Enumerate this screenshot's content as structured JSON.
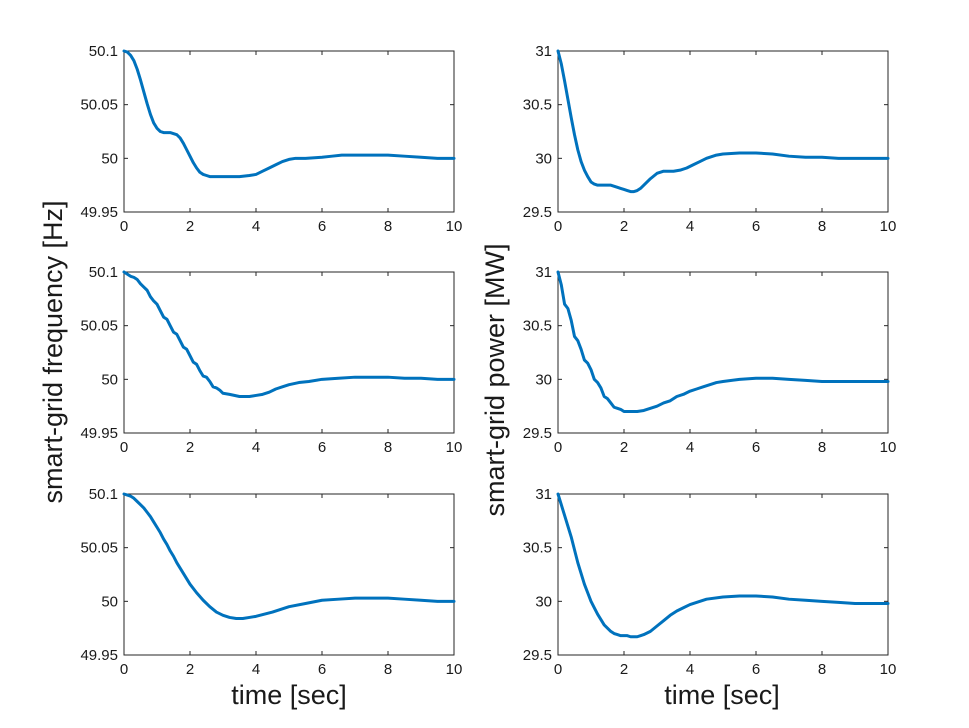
{
  "figure": {
    "left_ylabel": "smart-grid frequency [Hz]",
    "right_ylabel": "smart-grid power [MW]",
    "left_xlabel": "time [sec]",
    "right_xlabel": "time [sec]"
  },
  "colors": {
    "line": "#0072BD",
    "axes": "#262626"
  },
  "chart_data": [
    {
      "type": "line",
      "panel": "top-left",
      "xlim": [
        0,
        10
      ],
      "ylim": [
        49.95,
        50.1
      ],
      "xticks": [
        "0",
        "2",
        "4",
        "6",
        "8",
        "10"
      ],
      "yticks": [
        "50.1",
        "50.05",
        "50",
        "49.95"
      ],
      "series": [
        {
          "x": [
            0,
            0.1,
            0.2,
            0.3,
            0.4,
            0.5,
            0.6,
            0.7,
            0.8,
            0.9,
            1.0,
            1.1,
            1.2,
            1.4,
            1.6,
            1.7,
            1.8,
            1.9,
            2.0,
            2.1,
            2.2,
            2.3,
            2.4,
            2.5,
            2.6,
            2.7,
            2.8,
            3.0,
            3.2,
            3.5,
            3.8,
            4.0,
            4.2,
            4.4,
            4.6,
            4.8,
            5.0,
            5.2,
            5.5,
            6.0,
            6.3,
            6.6,
            7.0,
            7.5,
            8.0,
            8.5,
            9.0,
            9.5,
            10
          ],
          "y": [
            50.1,
            50.099,
            50.096,
            50.091,
            50.083,
            50.073,
            50.062,
            50.051,
            50.041,
            50.033,
            50.028,
            50.025,
            50.024,
            50.024,
            50.022,
            50.019,
            50.014,
            50.008,
            50.002,
            49.996,
            49.991,
            49.987,
            49.985,
            49.984,
            49.983,
            49.983,
            49.983,
            49.983,
            49.983,
            49.983,
            49.984,
            49.985,
            49.988,
            49.991,
            49.994,
            49.997,
            49.999,
            50.0,
            50.0,
            50.001,
            50.002,
            50.003,
            50.003,
            50.003,
            50.003,
            50.002,
            50.001,
            50.0,
            50.0
          ]
        }
      ]
    },
    {
      "type": "line",
      "panel": "top-right",
      "xlim": [
        0,
        10
      ],
      "ylim": [
        29.5,
        31
      ],
      "xticks": [
        "0",
        "2",
        "4",
        "6",
        "8",
        "10"
      ],
      "yticks": [
        "31",
        "30.5",
        "30",
        "29.5"
      ],
      "series": [
        {
          "x": [
            0,
            0.1,
            0.2,
            0.3,
            0.4,
            0.5,
            0.6,
            0.7,
            0.8,
            0.9,
            1.0,
            1.1,
            1.2,
            1.4,
            1.6,
            1.8,
            1.9,
            2.0,
            2.1,
            2.2,
            2.3,
            2.4,
            2.5,
            2.6,
            2.8,
            3.0,
            3.2,
            3.5,
            3.7,
            3.9,
            4.1,
            4.3,
            4.5,
            4.8,
            5.0,
            5.5,
            6.0,
            6.5,
            7.0,
            7.5,
            8.0,
            8.5,
            9.0,
            9.5,
            10
          ],
          "y": [
            31.0,
            30.88,
            30.72,
            30.55,
            30.38,
            30.22,
            30.08,
            29.97,
            29.89,
            29.83,
            29.78,
            29.76,
            29.75,
            29.75,
            29.75,
            29.73,
            29.72,
            29.71,
            29.7,
            29.69,
            29.69,
            29.7,
            29.72,
            29.75,
            29.81,
            29.86,
            29.88,
            29.88,
            29.89,
            29.91,
            29.94,
            29.97,
            30.0,
            30.03,
            30.04,
            30.05,
            30.05,
            30.04,
            30.02,
            30.01,
            30.01,
            30.0,
            30.0,
            30.0,
            30.0
          ]
        }
      ]
    },
    {
      "type": "line",
      "panel": "middle-left",
      "xlim": [
        0,
        10
      ],
      "ylim": [
        49.95,
        50.1
      ],
      "xticks": [
        "0",
        "2",
        "4",
        "6",
        "8",
        "10"
      ],
      "yticks": [
        "50.1",
        "50.05",
        "50",
        "49.95"
      ],
      "series": [
        {
          "x": [
            0,
            0.1,
            0.2,
            0.3,
            0.4,
            0.5,
            0.6,
            0.7,
            0.8,
            0.9,
            1.0,
            1.1,
            1.2,
            1.3,
            1.4,
            1.5,
            1.6,
            1.7,
            1.8,
            1.9,
            2.0,
            2.1,
            2.2,
            2.3,
            2.4,
            2.5,
            2.6,
            2.7,
            2.8,
            2.9,
            3.0,
            3.2,
            3.5,
            3.8,
            4.0,
            4.2,
            4.4,
            4.6,
            4.8,
            5.0,
            5.3,
            5.6,
            6.0,
            6.5,
            7.0,
            7.5,
            8.0,
            8.5,
            9.0,
            9.5,
            10
          ],
          "y": [
            50.1,
            50.098,
            50.096,
            50.095,
            50.093,
            50.089,
            50.086,
            50.083,
            50.077,
            50.073,
            50.07,
            50.064,
            50.058,
            50.056,
            50.05,
            50.044,
            50.042,
            50.036,
            50.03,
            50.028,
            50.022,
            50.016,
            50.014,
            50.008,
            50.003,
            50.002,
            49.998,
            49.993,
            49.992,
            49.99,
            49.987,
            49.986,
            49.984,
            49.984,
            49.985,
            49.986,
            49.988,
            49.991,
            49.993,
            49.995,
            49.997,
            49.998,
            50.0,
            50.001,
            50.002,
            50.002,
            50.002,
            50.001,
            50.001,
            50.0,
            50.0
          ]
        }
      ]
    },
    {
      "type": "line",
      "panel": "middle-right",
      "xlim": [
        0,
        10
      ],
      "ylim": [
        29.5,
        31
      ],
      "xticks": [
        "0",
        "2",
        "4",
        "6",
        "8",
        "10"
      ],
      "yticks": [
        "31",
        "30.5",
        "30",
        "29.5"
      ],
      "series": [
        {
          "x": [
            0,
            0.1,
            0.2,
            0.3,
            0.4,
            0.5,
            0.6,
            0.7,
            0.8,
            0.9,
            1.0,
            1.1,
            1.2,
            1.3,
            1.4,
            1.5,
            1.6,
            1.7,
            1.8,
            1.9,
            2.0,
            2.2,
            2.4,
            2.6,
            2.8,
            3.0,
            3.2,
            3.4,
            3.6,
            3.8,
            4.0,
            4.2,
            4.4,
            4.6,
            4.8,
            5.0,
            5.5,
            6.0,
            6.5,
            7.0,
            7.5,
            8.0,
            8.5,
            9.0,
            9.5,
            10
          ],
          "y": [
            31.0,
            30.88,
            30.7,
            30.66,
            30.55,
            30.4,
            30.36,
            30.28,
            30.18,
            30.15,
            30.09,
            30.0,
            29.97,
            29.92,
            29.84,
            29.82,
            29.78,
            29.74,
            29.73,
            29.72,
            29.7,
            29.7,
            29.7,
            29.71,
            29.73,
            29.75,
            29.78,
            29.8,
            29.84,
            29.86,
            29.89,
            29.91,
            29.93,
            29.95,
            29.97,
            29.98,
            30.0,
            30.01,
            30.01,
            30.0,
            29.99,
            29.98,
            29.98,
            29.98,
            29.98,
            29.98
          ]
        }
      ]
    },
    {
      "type": "line",
      "panel": "bottom-left",
      "xlim": [
        0,
        10
      ],
      "ylim": [
        49.95,
        50.1
      ],
      "xticks": [
        "0",
        "2",
        "4",
        "6",
        "8",
        "10"
      ],
      "yticks": [
        "50.1",
        "50.05",
        "50",
        "49.95"
      ],
      "series": [
        {
          "x": [
            0,
            0.1,
            0.2,
            0.3,
            0.4,
            0.5,
            0.6,
            0.7,
            0.8,
            0.9,
            1.0,
            1.1,
            1.2,
            1.3,
            1.4,
            1.5,
            1.6,
            1.7,
            1.8,
            1.9,
            2.0,
            2.2,
            2.4,
            2.6,
            2.8,
            3.0,
            3.2,
            3.4,
            3.6,
            3.8,
            4.0,
            4.5,
            5.0,
            5.5,
            6.0,
            6.5,
            7.0,
            7.5,
            8.0,
            8.5,
            9.0,
            9.5,
            10
          ],
          "y": [
            50.1,
            50.099,
            50.098,
            50.096,
            50.093,
            50.09,
            50.087,
            50.083,
            50.079,
            50.074,
            50.069,
            50.064,
            50.058,
            50.053,
            50.047,
            50.042,
            50.036,
            50.031,
            50.026,
            50.021,
            50.016,
            50.008,
            50.001,
            49.995,
            49.99,
            49.987,
            49.985,
            49.984,
            49.984,
            49.985,
            49.986,
            49.99,
            49.995,
            49.998,
            50.001,
            50.002,
            50.003,
            50.003,
            50.003,
            50.002,
            50.001,
            50.0,
            50.0
          ]
        }
      ]
    },
    {
      "type": "line",
      "panel": "bottom-right",
      "xlim": [
        0,
        10
      ],
      "ylim": [
        29.5,
        31
      ],
      "xticks": [
        "0",
        "2",
        "4",
        "6",
        "8",
        "10"
      ],
      "yticks": [
        "31",
        "30.5",
        "30",
        "29.5"
      ],
      "series": [
        {
          "x": [
            0,
            0.1,
            0.2,
            0.3,
            0.4,
            0.5,
            0.6,
            0.7,
            0.8,
            0.9,
            1.0,
            1.1,
            1.2,
            1.3,
            1.4,
            1.5,
            1.6,
            1.7,
            1.8,
            1.9,
            2.0,
            2.1,
            2.2,
            2.3,
            2.4,
            2.5,
            2.6,
            2.8,
            3.0,
            3.2,
            3.4,
            3.6,
            3.8,
            4.0,
            4.5,
            5.0,
            5.5,
            6.0,
            6.5,
            7.0,
            7.5,
            8.0,
            8.5,
            9.0,
            9.5,
            10
          ],
          "y": [
            31.0,
            30.9,
            30.8,
            30.7,
            30.6,
            30.48,
            30.36,
            30.26,
            30.16,
            30.08,
            30.0,
            29.94,
            29.88,
            29.83,
            29.78,
            29.75,
            29.72,
            29.7,
            29.69,
            29.68,
            29.68,
            29.68,
            29.67,
            29.67,
            29.67,
            29.68,
            29.69,
            29.72,
            29.77,
            29.82,
            29.87,
            29.91,
            29.94,
            29.97,
            30.02,
            30.04,
            30.05,
            30.05,
            30.04,
            30.02,
            30.01,
            30.0,
            29.99,
            29.98,
            29.98,
            29.98
          ]
        }
      ]
    }
  ]
}
